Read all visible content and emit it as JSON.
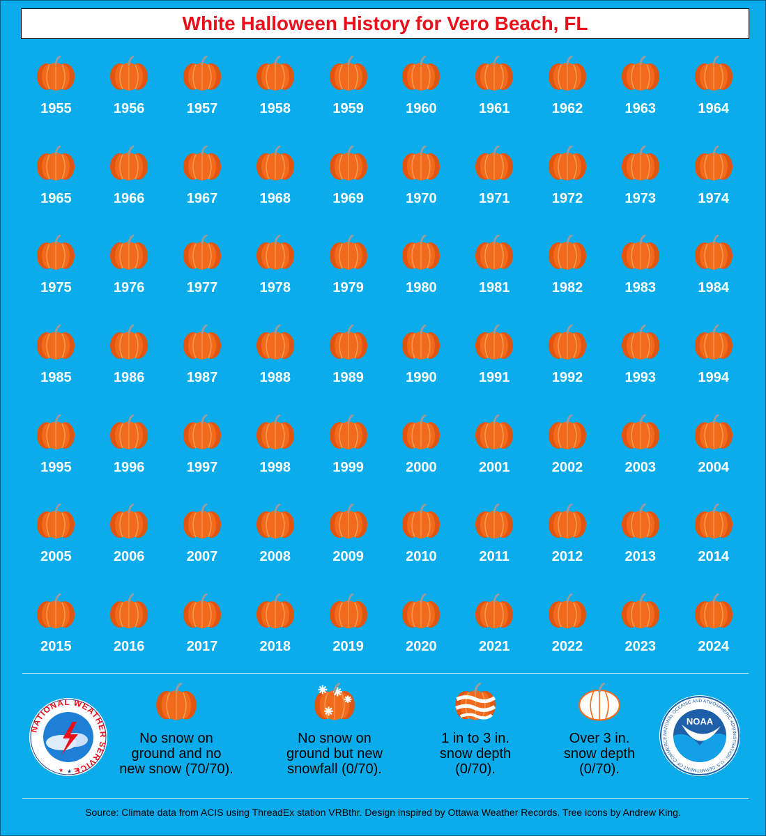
{
  "title": "White Halloween History for Vero Beach, FL",
  "colors": {
    "background": "#0aacec",
    "title_text": "#e8101b",
    "pumpkin": "#f26a1b",
    "pumpkin_shade": "#e05610",
    "stem": "#9a9a9a",
    "year_text": "#ffffff"
  },
  "years": [
    [
      "1955",
      "1956",
      "1957",
      "1958",
      "1959",
      "1960",
      "1961",
      "1962",
      "1963",
      "1964"
    ],
    [
      "1965",
      "1966",
      "1967",
      "1968",
      "1969",
      "1970",
      "1971",
      "1972",
      "1973",
      "1974"
    ],
    [
      "1975",
      "1976",
      "1977",
      "1978",
      "1979",
      "1980",
      "1981",
      "1982",
      "1983",
      "1984"
    ],
    [
      "1985",
      "1986",
      "1987",
      "1988",
      "1989",
      "1990",
      "1991",
      "1992",
      "1993",
      "1994"
    ],
    [
      "1995",
      "1996",
      "1997",
      "1998",
      "1999",
      "2000",
      "2001",
      "2002",
      "2003",
      "2004"
    ],
    [
      "2005",
      "2006",
      "2007",
      "2008",
      "2009",
      "2010",
      "2011",
      "2012",
      "2013",
      "2014"
    ],
    [
      "2015",
      "2016",
      "2017",
      "2018",
      "2019",
      "2020",
      "2021",
      "2022",
      "2023",
      "2024"
    ]
  ],
  "year_icon": "pumpkin-icon",
  "legend": [
    {
      "icon": "pumpkin-icon",
      "label": "No snow on\nground and no\nnew snow (70/70)."
    },
    {
      "icon": "snowflake-pumpkin-icon",
      "label": "No snow on\nground but new\nsnowfall (0/70)."
    },
    {
      "icon": "snow-striped-pumpkin-icon",
      "label": "1 in to 3 in.\nsnow depth\n(0/70)."
    },
    {
      "icon": "white-pumpkin-icon",
      "label": "Over 3 in.\nsnow depth\n(0/70)."
    }
  ],
  "logos": {
    "nws_text": "NATIONAL WEATHER SERVICE",
    "noaa_text": "NOAA",
    "noaa_ring_text": "NATIONAL OCEANIC AND ATMOSPHERIC ADMINISTRATION · U.S. DEPARTMENT OF COMMERCE"
  },
  "source": "Source: Climate data from ACIS using ThreadEx station VRBthr. Design inspired by Ottawa Weather Records. Tree icons by Andrew King."
}
